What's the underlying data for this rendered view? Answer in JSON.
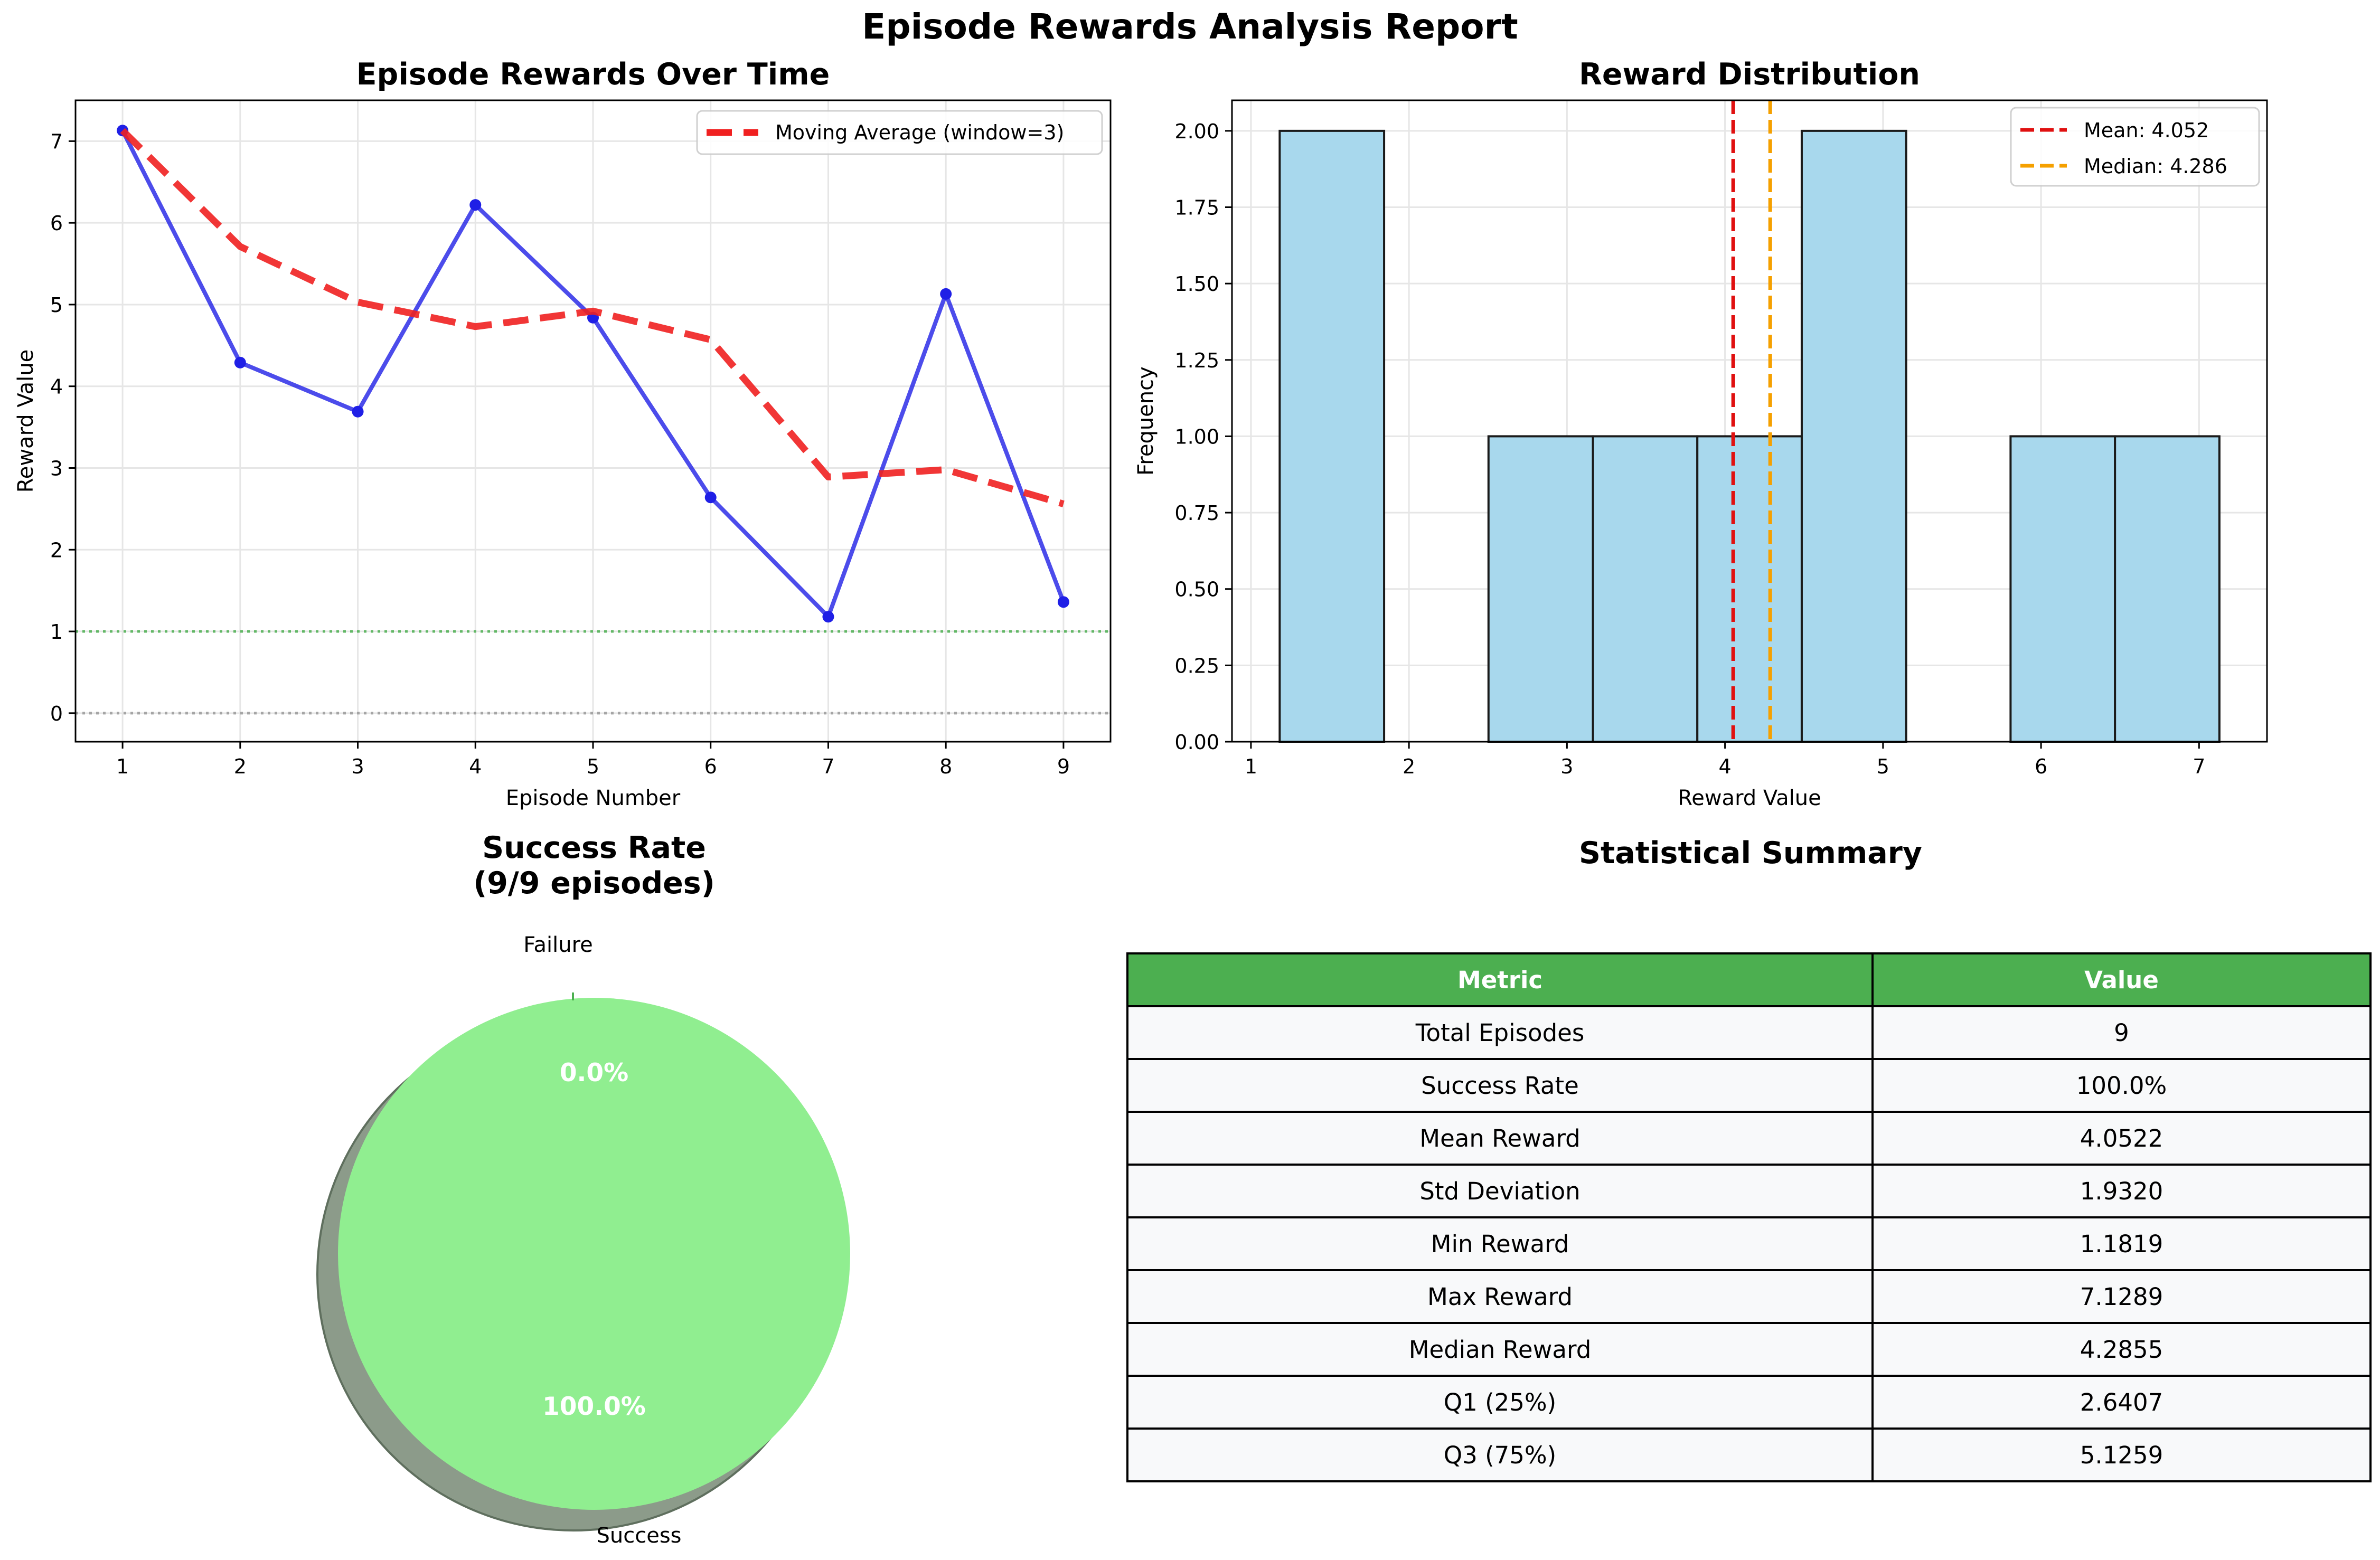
{
  "suptitle": "Episode Rewards Analysis Report",
  "colors": {
    "reward_line": "#1f1fe6",
    "moving_average": "#f02020",
    "success_threshold": "#4caf50",
    "zero_line": "#999999",
    "hist_bar": "#a8d8ed",
    "mean_line": "#e01010",
    "median_line": "#f5a000",
    "pie_success": "#90ee90",
    "pie_shadow": "#8c9b8a",
    "table_header": "#4caf50",
    "table_cell": "#f8f9fa"
  },
  "chart_data": [
    {
      "type": "line",
      "title": "Episode Rewards Over Time",
      "xlabel": "Episode Number",
      "ylabel": "Reward Value",
      "x": [
        1,
        2,
        3,
        4,
        5,
        6,
        7,
        8,
        9
      ],
      "series": [
        {
          "values": [
            7.13,
            4.29,
            3.69,
            6.22,
            4.84,
            2.64,
            1.18,
            5.13,
            1.36
          ],
          "color": "#1f1fe6",
          "style": "solid-with-markers"
        },
        {
          "name": "Moving Average (window=3)",
          "values": [
            7.13,
            5.71,
            5.03,
            4.73,
            4.92,
            4.57,
            2.89,
            2.98,
            2.56
          ],
          "color": "#f02020",
          "style": "dashed"
        }
      ],
      "reference_lines": [
        {
          "y": 1,
          "color": "#4caf50",
          "style": "dotted"
        },
        {
          "y": 0,
          "color": "#999999",
          "style": "dotted"
        }
      ],
      "xlim": [
        0.6,
        9.4
      ],
      "ylim": [
        -0.35,
        7.5
      ],
      "xticks": [
        "1",
        "2",
        "3",
        "4",
        "5",
        "6",
        "7",
        "8",
        "9"
      ],
      "yticks": [
        "0",
        "1",
        "2",
        "3",
        "4",
        "5",
        "6",
        "7"
      ],
      "grid": true,
      "legend_position": "upper-right"
    },
    {
      "type": "bar",
      "title": "Reward Distribution",
      "xlabel": "Reward Value",
      "ylabel": "Frequency",
      "bins": [
        {
          "start": 1.1819,
          "end": 1.8427,
          "count": 2
        },
        {
          "start": 1.8427,
          "end": 2.5034,
          "count": 0
        },
        {
          "start": 2.5034,
          "end": 3.1642,
          "count": 1
        },
        {
          "start": 3.1642,
          "end": 3.8249,
          "count": 1
        },
        {
          "start": 3.8249,
          "end": 4.4857,
          "count": 1
        },
        {
          "start": 4.4857,
          "end": 5.1465,
          "count": 2
        },
        {
          "start": 5.1465,
          "end": 5.8072,
          "count": 0
        },
        {
          "start": 5.8072,
          "end": 6.4681,
          "count": 1
        },
        {
          "start": 6.4681,
          "end": 7.1289,
          "count": 1
        }
      ],
      "vlines": [
        {
          "name": "Mean: 4.052",
          "x": 4.052,
          "color": "#e01010"
        },
        {
          "name": "Median: 4.286",
          "x": 4.286,
          "color": "#f5a000"
        }
      ],
      "xlim": [
        0.88,
        7.43
      ],
      "ylim": [
        0,
        2.1
      ],
      "xticks": [
        "1",
        "2",
        "3",
        "4",
        "5",
        "6",
        "7"
      ],
      "yticks": [
        "0.00",
        "0.25",
        "0.50",
        "0.75",
        "1.00",
        "1.25",
        "1.50",
        "1.75",
        "2.00"
      ],
      "grid": true,
      "legend_position": "upper-right"
    },
    {
      "type": "pie",
      "title_line1": "Success Rate",
      "title_line2": "(9/9 episodes)",
      "slices": [
        {
          "label": "Success",
          "value": 100.0,
          "pct_label": "100.0%",
          "color": "#90ee90"
        },
        {
          "label": "Failure",
          "value": 0.0,
          "pct_label": "0.0%",
          "color": "#4caf50"
        }
      ],
      "shadow": true
    },
    {
      "type": "table",
      "title": "Statistical Summary",
      "columns": [
        "Metric",
        "Value"
      ],
      "rows": [
        [
          "Total Episodes",
          "9"
        ],
        [
          "Success Rate",
          "100.0%"
        ],
        [
          "Mean Reward",
          "4.0522"
        ],
        [
          "Std Deviation",
          "1.9320"
        ],
        [
          "Min Reward",
          "1.1819"
        ],
        [
          "Max Reward",
          "7.1289"
        ],
        [
          "Median Reward",
          "4.2855"
        ],
        [
          "Q1 (25%)",
          "2.6407"
        ],
        [
          "Q3 (75%)",
          "5.1259"
        ]
      ]
    }
  ]
}
